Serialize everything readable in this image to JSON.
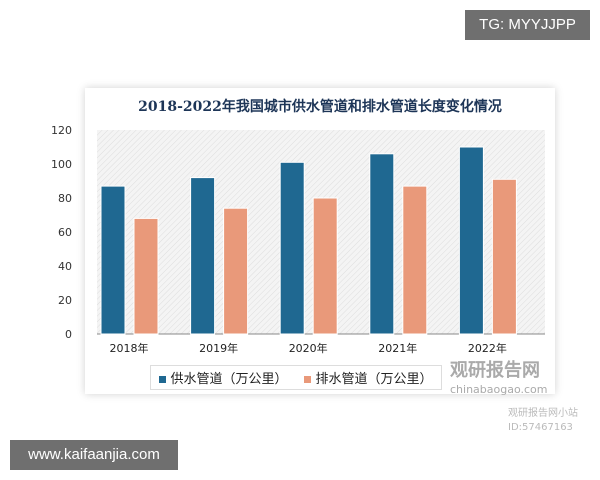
{
  "watermarks": {
    "tg": "TG: MYYJJPP",
    "site": "www.kaifaanjia.com",
    "brand": "观研报告网",
    "brand_url": "chinabaogao.com",
    "account": "观研报告网小站",
    "account_id": "ID:57467163"
  },
  "chart_data": {
    "type": "bar",
    "title": "2018-2022年我国城市供水管道和排水管道长度变化情况",
    "categories": [
      "2018年",
      "2019年",
      "2020年",
      "2021年",
      "2022年"
    ],
    "series": [
      {
        "name": "供水管道（万公里）",
        "values": [
          87,
          92,
          101,
          106,
          110
        ],
        "color": "#1f6891"
      },
      {
        "name": "排水管道（万公里）",
        "values": [
          68,
          74,
          80,
          87,
          91
        ],
        "color": "#e9997a"
      }
    ],
    "ylim": [
      0,
      120
    ],
    "yticks": [
      0,
      20,
      40,
      60,
      80,
      100,
      120
    ],
    "grid": false,
    "legend": "bottom"
  }
}
